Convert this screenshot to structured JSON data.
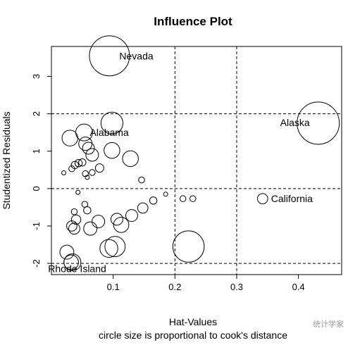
{
  "chart_data": {
    "type": "scatter",
    "title": "Influence Plot",
    "xlabel": "Hat-Values",
    "ylabel": "Studentized Residuals",
    "subtitle": "circle size is proportional to cook's distance",
    "xlim": [
      0.0,
      0.47
    ],
    "ylim": [
      -2.3,
      3.8
    ],
    "xticks": [
      "0.1",
      "0.2",
      "0.3",
      "0.4"
    ],
    "xtick_values": [
      0.1,
      0.2,
      0.3,
      0.4
    ],
    "yticks": [
      "-2",
      "-1",
      "0",
      "1",
      "2",
      "3"
    ],
    "ytick_values": [
      -2,
      -1,
      0,
      1,
      2,
      3
    ],
    "reference_lines": {
      "horizontal": [
        -2,
        0,
        2
      ],
      "vertical": [
        0.2,
        0.3
      ]
    },
    "points": [
      {
        "x": 0.094,
        "y": 3.55,
        "cook": 0.9,
        "label": "Nevada"
      },
      {
        "x": 0.432,
        "y": 1.75,
        "cook": 1.0,
        "label": "Alaska"
      },
      {
        "x": 0.222,
        "y": -1.55,
        "cook": 0.55,
        "label": ""
      },
      {
        "x": 0.342,
        "y": -0.27,
        "cook": 0.06,
        "label": "California"
      },
      {
        "x": 0.053,
        "y": 1.5,
        "cook": 0.16,
        "label": "Alabama"
      },
      {
        "x": 0.034,
        "y": -1.97,
        "cook": 0.16,
        "label": "Rhode Island"
      },
      {
        "x": 0.098,
        "y": 1.75,
        "cook": 0.27,
        "label": ""
      },
      {
        "x": 0.03,
        "y": 1.35,
        "cook": 0.14,
        "label": ""
      },
      {
        "x": 0.055,
        "y": 1.2,
        "cook": 0.1,
        "label": ""
      },
      {
        "x": 0.06,
        "y": 1.08,
        "cook": 0.08,
        "label": ""
      },
      {
        "x": 0.098,
        "y": 1.02,
        "cook": 0.14,
        "label": ""
      },
      {
        "x": 0.066,
        "y": 0.9,
        "cook": 0.09,
        "label": ""
      },
      {
        "x": 0.128,
        "y": 0.8,
        "cook": 0.14,
        "label": ""
      },
      {
        "x": 0.038,
        "y": 0.63,
        "cook": 0.03,
        "label": ""
      },
      {
        "x": 0.044,
        "y": 0.68,
        "cook": 0.03,
        "label": ""
      },
      {
        "x": 0.05,
        "y": 0.7,
        "cook": 0.03,
        "label": ""
      },
      {
        "x": 0.033,
        "y": 0.53,
        "cook": 0.02,
        "label": ""
      },
      {
        "x": 0.078,
        "y": 0.55,
        "cook": 0.04,
        "label": ""
      },
      {
        "x": 0.055,
        "y": 0.4,
        "cook": 0.02,
        "label": ""
      },
      {
        "x": 0.066,
        "y": 0.43,
        "cook": 0.02,
        "label": ""
      },
      {
        "x": 0.02,
        "y": 0.42,
        "cook": 0.01,
        "label": ""
      },
      {
        "x": 0.146,
        "y": 0.23,
        "cook": 0.02,
        "label": ""
      },
      {
        "x": 0.058,
        "y": 0.3,
        "cook": 0.01,
        "label": ""
      },
      {
        "x": 0.043,
        "y": -0.1,
        "cook": 0.01,
        "label": ""
      },
      {
        "x": 0.185,
        "y": -0.15,
        "cook": 0.01,
        "label": ""
      },
      {
        "x": 0.213,
        "y": -0.27,
        "cook": 0.02,
        "label": ""
      },
      {
        "x": 0.229,
        "y": -0.27,
        "cook": 0.02,
        "label": ""
      },
      {
        "x": 0.054,
        "y": -0.42,
        "cook": 0.02,
        "label": ""
      },
      {
        "x": 0.037,
        "y": -0.62,
        "cook": 0.02,
        "label": ""
      },
      {
        "x": 0.058,
        "y": -0.58,
        "cook": 0.03,
        "label": ""
      },
      {
        "x": 0.04,
        "y": -0.83,
        "cook": 0.05,
        "label": ""
      },
      {
        "x": 0.165,
        "y": -0.32,
        "cook": 0.03,
        "label": ""
      },
      {
        "x": 0.148,
        "y": -0.52,
        "cook": 0.06,
        "label": ""
      },
      {
        "x": 0.13,
        "y": -0.72,
        "cook": 0.08,
        "label": ""
      },
      {
        "x": 0.106,
        "y": -0.82,
        "cook": 0.08,
        "label": ""
      },
      {
        "x": 0.076,
        "y": -0.88,
        "cook": 0.09,
        "label": ""
      },
      {
        "x": 0.113,
        "y": -0.97,
        "cook": 0.13,
        "label": ""
      },
      {
        "x": 0.033,
        "y": -1.0,
        "cook": 0.06,
        "label": ""
      },
      {
        "x": 0.037,
        "y": -1.07,
        "cook": 0.07,
        "label": ""
      },
      {
        "x": 0.063,
        "y": -1.07,
        "cook": 0.1,
        "label": ""
      },
      {
        "x": 0.025,
        "y": -1.7,
        "cook": 0.11,
        "label": ""
      },
      {
        "x": 0.093,
        "y": -1.6,
        "cook": 0.18,
        "label": ""
      },
      {
        "x": 0.103,
        "y": -1.55,
        "cook": 0.23,
        "label": ""
      },
      {
        "x": 0.032,
        "y": -1.97,
        "cook": 0.12,
        "label": ""
      }
    ]
  },
  "watermark": "统计学家"
}
